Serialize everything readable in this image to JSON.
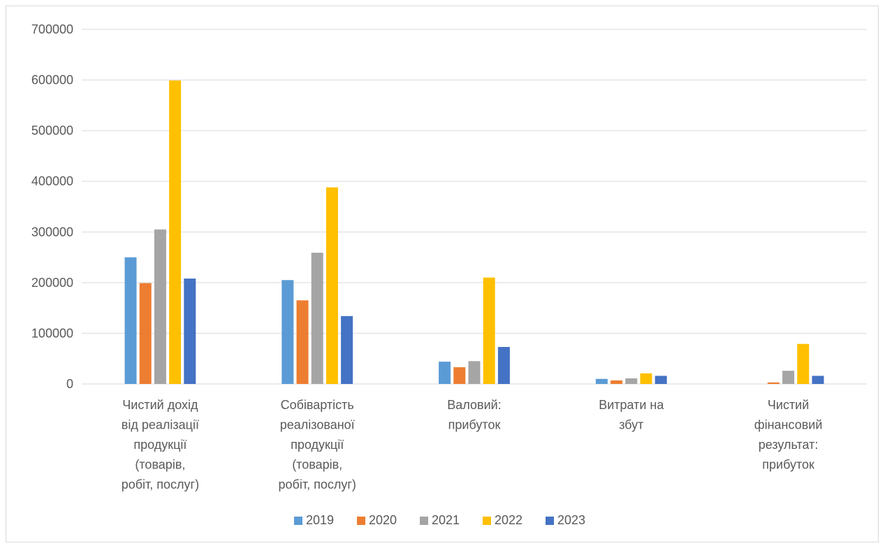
{
  "chart_data": {
    "type": "bar",
    "title": "",
    "xlabel": "",
    "ylabel": "",
    "ylim": [
      0,
      700000
    ],
    "yticks": [
      "0",
      "100000",
      "200000",
      "300000",
      "400000",
      "500000",
      "600000",
      "700000"
    ],
    "grid": true,
    "legend_position": "bottom",
    "categories": [
      [
        "Чистий дохід",
        "від реалізації",
        "продукції",
        "(товарів,",
        "робіт, послуг)"
      ],
      [
        "Собівартість",
        "реалізованої",
        "продукції",
        "(товарів,",
        "робіт, послуг)"
      ],
      [
        "Валовий:",
        "прибуток"
      ],
      [
        "Витрати на",
        "збут"
      ],
      [
        "Чистий",
        "фінансовий",
        "результат:",
        "прибуток"
      ]
    ],
    "series": [
      {
        "name": "2019",
        "color": "#5b9bd5",
        "values": [
          250000,
          205000,
          44000,
          10000,
          0
        ]
      },
      {
        "name": "2020",
        "color": "#ed7d31",
        "values": [
          199000,
          165000,
          33000,
          7000,
          3000
        ]
      },
      {
        "name": "2021",
        "color": "#a5a5a5",
        "values": [
          305000,
          259000,
          45000,
          11000,
          26000
        ]
      },
      {
        "name": "2022",
        "color": "#ffc000",
        "values": [
          599000,
          388000,
          210000,
          21000,
          79000
        ]
      },
      {
        "name": "2023",
        "color": "#4472c4",
        "values": [
          208000,
          134000,
          73000,
          16000,
          16000
        ]
      }
    ]
  }
}
